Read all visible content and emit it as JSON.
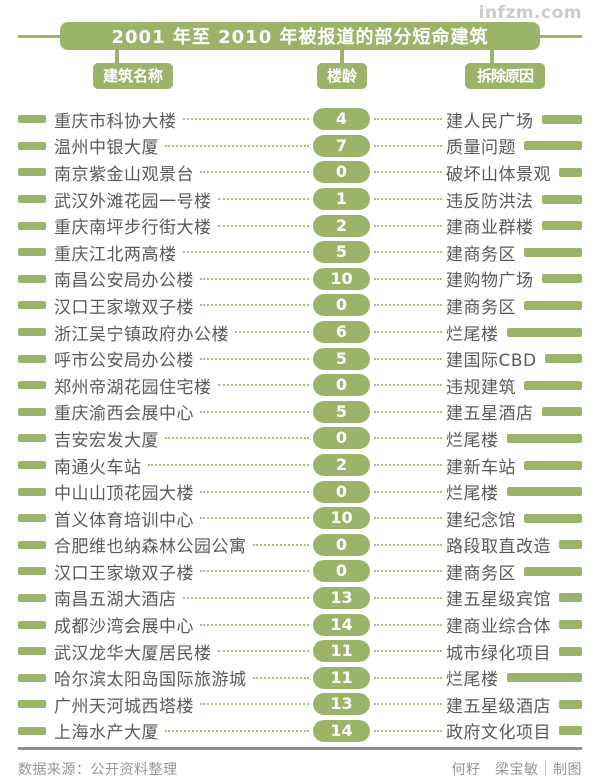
{
  "watermark": "infzm.com",
  "header": {
    "title": "2001 年至 2010 年被报道的部分短命建筑"
  },
  "columns": {
    "name": "建筑名称",
    "age": "楼龄",
    "reason": "拆除原因"
  },
  "chart_data": {
    "type": "table",
    "title": "2001 年至 2010 年被报道的部分短命建筑",
    "columns": [
      "建筑名称",
      "楼龄",
      "拆除原因"
    ],
    "rows": [
      {
        "name": "重庆市科协大楼",
        "age": "4",
        "reason": "建人民广场"
      },
      {
        "name": "温州中银大厦",
        "age": "7",
        "reason": "质量问题"
      },
      {
        "name": "南京紫金山观景台",
        "age": "0",
        "reason": "破坏山体景观"
      },
      {
        "name": "武汉外滩花园一号楼",
        "age": "1",
        "reason": "违反防洪法"
      },
      {
        "name": "重庆南坪步行街大楼",
        "age": "2",
        "reason": "建商业群楼"
      },
      {
        "name": "重庆江北两高楼",
        "age": "5",
        "reason": "建商务区"
      },
      {
        "name": "南昌公安局办公楼",
        "age": "10",
        "reason": "建购物广场"
      },
      {
        "name": "汉口王家墩双子楼",
        "age": "0",
        "reason": "建商务区"
      },
      {
        "name": "浙江吴宁镇政府办公楼",
        "age": "6",
        "reason": "烂尾楼"
      },
      {
        "name": "呼市公安局办公楼",
        "age": "5",
        "reason": "建国际CBD"
      },
      {
        "name": "郑州帝湖花园住宅楼",
        "age": "0",
        "reason": "违规建筑"
      },
      {
        "name": "重庆渝西会展中心",
        "age": "5",
        "reason": "建五星酒店"
      },
      {
        "name": "吉安宏发大厦",
        "age": "0",
        "reason": "烂尾楼"
      },
      {
        "name": "南通火车站",
        "age": "2",
        "reason": "建新车站"
      },
      {
        "name": "中山山顶花园大楼",
        "age": "0",
        "reason": "烂尾楼"
      },
      {
        "name": "首义体育培训中心",
        "age": "10",
        "reason": "建纪念馆"
      },
      {
        "name": "合肥维也纳森林公园公寓",
        "age": "0",
        "reason": "路段取直改造"
      },
      {
        "name": "汉口王家墩双子楼",
        "age": "0",
        "reason": "建商务区"
      },
      {
        "name": "南昌五湖大酒店",
        "age": "13",
        "reason": "建五星级宾馆"
      },
      {
        "name": "成都沙湾会展中心",
        "age": "14",
        "reason": "建商业综合体"
      },
      {
        "name": "武汉龙华大厦居民楼",
        "age": "11",
        "reason": "城市绿化项目"
      },
      {
        "name": "哈尔滨太阳岛国际旅游城",
        "age": "11",
        "reason": "烂尾楼"
      },
      {
        "name": "广州天河城西塔楼",
        "age": "13",
        "reason": "建五星级酒店"
      },
      {
        "name": "上海水产大厦",
        "age": "14",
        "reason": "政府文化项目"
      }
    ]
  },
  "footer": {
    "source": "数据来源：公开资料整理",
    "credits": "何籽　梁宝敏｜制图"
  },
  "colors": {
    "accent_green": "#9bb46a",
    "leader_green": "#a9c37f",
    "text_gray": "#5b5959"
  }
}
